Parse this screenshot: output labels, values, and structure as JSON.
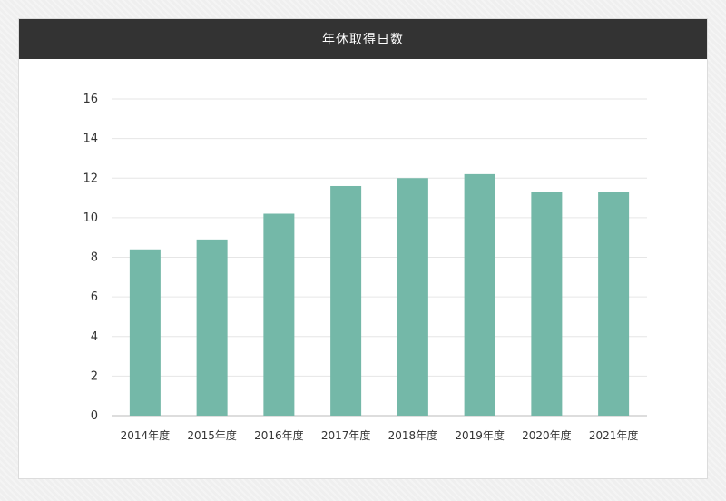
{
  "page": {
    "title": "年休取得日数"
  },
  "colors": {
    "bar": "#74b8a8",
    "header_bg": "#333333",
    "grid": "#e6e6e6",
    "axis": "#bbbbbb",
    "tick_text": "#333333"
  },
  "chart_data": {
    "type": "bar",
    "title": "年休取得日数",
    "xlabel": "",
    "ylabel": "",
    "categories": [
      "2014年度",
      "2015年度",
      "2016年度",
      "2017年度",
      "2018年度",
      "2019年度",
      "2020年度",
      "2021年度"
    ],
    "values": [
      8.4,
      8.9,
      10.2,
      11.6,
      12.0,
      12.2,
      11.3,
      11.3
    ],
    "ylim": [
      0,
      16
    ],
    "yticks": [
      0,
      2,
      4,
      6,
      8,
      10,
      12,
      14,
      16
    ],
    "grid": true,
    "legend": "none"
  }
}
